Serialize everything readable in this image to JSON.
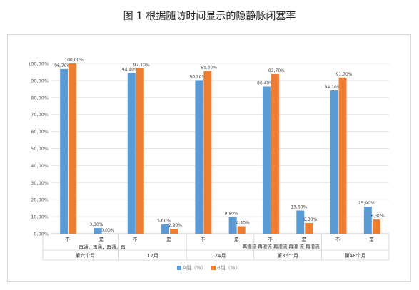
{
  "title": "图 1 根据随访时间显示的隐静脉闭塞率",
  "chart_data": {
    "type": "bar",
    "title": "图 1 根据随访时间显示的隐静脉闭塞率",
    "ylim": [
      0,
      100
    ],
    "yticks": [
      "0,00%",
      "10,00%",
      "20,00%",
      "30,00%",
      "40,00%",
      "50,00%",
      "60,00%",
      "70,00%",
      "80,00%",
      "90,00%",
      "100,00%"
    ],
    "grid": true,
    "legend_position": "bottom",
    "groups": [
      "第六个月",
      "12月",
      "24月",
      "第36个月",
      "第48个月"
    ],
    "categories": [
      "不",
      "是",
      "不",
      "是",
      "不",
      "是",
      "不",
      "是",
      "不",
      "是"
    ],
    "category_notes": [
      "再通，再通，再通，再",
      "再灌流 再灌流 再灌流 再灌 流 再灌流"
    ],
    "series": [
      {
        "name": "A组（%）",
        "color": "#5b9bd5",
        "values": [
          96.7,
          3.3,
          94.4,
          5.6,
          90.2,
          9.8,
          86.4,
          13.6,
          84.1,
          15.9
        ],
        "labels": [
          "96,70%",
          "3,30%",
          "94,40%",
          "5,60%",
          "90,20%",
          "9,80%",
          "86,40%",
          "13,60%",
          "84,10%",
          "15,90%"
        ]
      },
      {
        "name": "B组（%）",
        "color": "#ed7d31",
        "values": [
          100.0,
          0.0,
          97.1,
          2.9,
          95.6,
          4.4,
          93.7,
          6.3,
          91.7,
          8.3
        ],
        "labels": [
          "100,00%",
          "0,00%",
          "97,10%",
          "2,90%",
          "95,60%",
          "4,40%",
          "93,70%",
          "6,30%",
          "91,70%",
          "8,30%"
        ]
      }
    ]
  }
}
